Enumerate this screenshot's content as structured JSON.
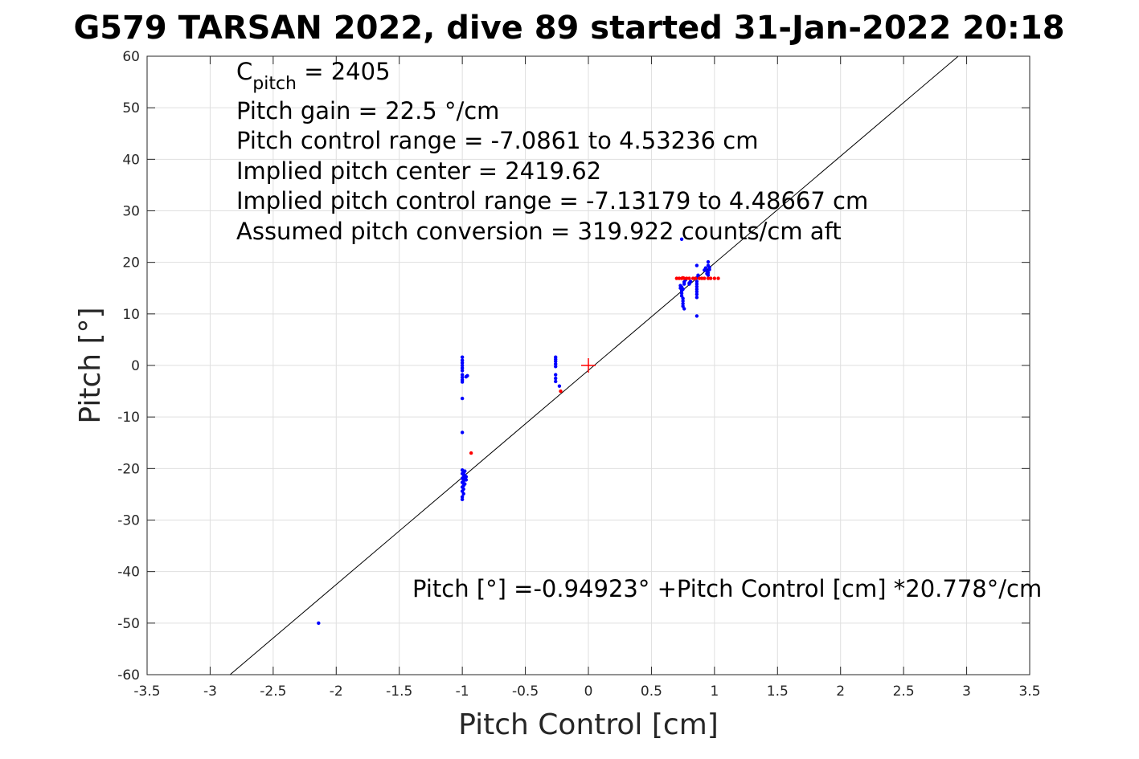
{
  "chart_data": {
    "type": "scatter",
    "title": "G579 TARSAN 2022, dive 89 started 31-Jan-2022 20:18",
    "xlabel": "Pitch Control [cm]",
    "ylabel": "Pitch [°]",
    "xlim": [
      -3.5,
      3.5
    ],
    "ylim": [
      -60,
      60
    ],
    "x_ticks": [
      -3.5,
      -3,
      -2.5,
      -2,
      -1.5,
      -1,
      -0.5,
      0,
      0.5,
      1,
      1.5,
      2,
      2.5,
      3,
      3.5
    ],
    "x_tick_labels": [
      "-3.5",
      "-3",
      "-2.5",
      "-2",
      "-1.5",
      "-1",
      "-0.5",
      "0",
      "0.5",
      "1",
      "1.5",
      "2",
      "2.5",
      "3",
      "3.5"
    ],
    "y_ticks": [
      -60,
      -50,
      -40,
      -30,
      -20,
      -10,
      0,
      10,
      20,
      30,
      40,
      50,
      60
    ],
    "y_tick_labels": [
      "-60",
      "-50",
      "-40",
      "-30",
      "-20",
      "-10",
      "0",
      "10",
      "20",
      "30",
      "40",
      "50",
      "60"
    ],
    "grid": true,
    "annotations": {
      "c_pitch_symbol": "C",
      "c_pitch_sub": "pitch",
      "c_pitch_value": " = 2405",
      "pitch_gain": "Pitch gain = 22.5 °/cm",
      "pitch_control_range": "Pitch control range = -7.0861 to 4.53236 cm",
      "implied_center": "Implied pitch center = 2419.62",
      "implied_range": "Implied pitch control range = -7.13179 to 4.48667 cm",
      "assumed_conversion": "Assumed pitch conversion = 319.922 counts/cm aft",
      "fit_equation": "Pitch [°] =-0.94923° +Pitch Control [cm] *20.778°/cm"
    },
    "fit_line": {
      "intercept": -0.94923,
      "slope": 20.778,
      "color": "#000000"
    },
    "center_marker": {
      "x": 0,
      "y": 0,
      "color": "#ff0000",
      "shape": "plus"
    },
    "series": [
      {
        "color": "#0000ff",
        "points": [
          [
            -2.14,
            -50
          ],
          [
            -1.0,
            1.6
          ],
          [
            -1.0,
            1.0
          ],
          [
            -1.0,
            0.5
          ],
          [
            -1.0,
            0.0
          ],
          [
            -1.0,
            -0.5
          ],
          [
            -1.0,
            -1.0
          ],
          [
            -1.0,
            -1.8
          ],
          [
            -1.0,
            -2.3
          ],
          [
            -1.0,
            -2.8
          ],
          [
            -1.0,
            -3.2
          ],
          [
            -0.97,
            -2.2
          ],
          [
            -0.96,
            -2.0
          ],
          [
            -1.0,
            -6.4
          ],
          [
            -1.0,
            -13.0
          ],
          [
            -1.0,
            -20.3
          ],
          [
            -0.98,
            -20.5
          ],
          [
            -0.99,
            -20.8
          ],
          [
            -1.0,
            -21.0
          ],
          [
            -0.98,
            -21.3
          ],
          [
            -0.99,
            -21.6
          ],
          [
            -1.0,
            -21.9
          ],
          [
            -0.98,
            -22.1
          ],
          [
            -0.99,
            -22.4
          ],
          [
            -1.0,
            -22.7
          ],
          [
            -0.98,
            -23.0
          ],
          [
            -0.99,
            -23.3
          ],
          [
            -1.0,
            -23.6
          ],
          [
            -0.99,
            -24.0
          ],
          [
            -1.0,
            -24.4
          ],
          [
            -0.99,
            -24.9
          ],
          [
            -1.0,
            -25.5
          ],
          [
            -1.0,
            -26.0
          ],
          [
            -0.97,
            -21.6
          ],
          [
            -0.97,
            -22.2
          ],
          [
            -0.26,
            1.6
          ],
          [
            -0.26,
            1.2
          ],
          [
            -0.26,
            0.8
          ],
          [
            -0.26,
            0.3
          ],
          [
            -0.26,
            -0.2
          ],
          [
            -0.26,
            -1.8
          ],
          [
            -0.26,
            -2.5
          ],
          [
            -0.26,
            -3.1
          ],
          [
            -0.23,
            -4.0
          ],
          [
            0.74,
            24.5
          ],
          [
            0.73,
            15.5
          ],
          [
            0.73,
            15.0
          ],
          [
            0.74,
            14.5
          ],
          [
            0.74,
            14.0
          ],
          [
            0.74,
            13.5
          ],
          [
            0.75,
            13.0
          ],
          [
            0.75,
            12.5
          ],
          [
            0.75,
            12.0
          ],
          [
            0.75,
            11.5
          ],
          [
            0.76,
            11.0
          ],
          [
            0.76,
            15.8
          ],
          [
            0.76,
            16.2
          ],
          [
            0.77,
            16.6
          ],
          [
            0.74,
            15.2
          ],
          [
            0.75,
            14.8
          ],
          [
            0.8,
            16.0
          ],
          [
            0.8,
            15.8
          ],
          [
            0.81,
            16.3
          ],
          [
            0.86,
            19.4
          ],
          [
            0.86,
            17.0
          ],
          [
            0.86,
            16.3
          ],
          [
            0.86,
            15.8
          ],
          [
            0.86,
            15.3
          ],
          [
            0.86,
            14.8
          ],
          [
            0.86,
            14.3
          ],
          [
            0.86,
            13.8
          ],
          [
            0.86,
            13.2
          ],
          [
            0.86,
            9.6
          ],
          [
            0.87,
            17.5
          ],
          [
            0.92,
            18.5
          ],
          [
            0.93,
            18.9
          ],
          [
            0.94,
            18.3
          ],
          [
            0.95,
            19.4
          ],
          [
            0.95,
            20.1
          ],
          [
            0.95,
            18.0
          ],
          [
            0.95,
            17.5
          ],
          [
            0.94,
            17.8
          ],
          [
            0.96,
            19.0
          ],
          [
            0.96,
            18.6
          ]
        ]
      },
      {
        "color": "#ff0000",
        "points": [
          [
            -0.93,
            -17.0
          ],
          [
            -0.22,
            -5.0
          ],
          [
            0.7,
            16.9
          ],
          [
            0.72,
            16.9
          ],
          [
            0.74,
            16.9
          ],
          [
            0.75,
            17.0
          ],
          [
            0.76,
            16.9
          ],
          [
            0.78,
            16.9
          ],
          [
            0.8,
            16.9
          ],
          [
            0.83,
            16.9
          ],
          [
            0.85,
            16.9
          ],
          [
            0.88,
            16.9
          ],
          [
            0.9,
            16.9
          ],
          [
            0.92,
            16.9
          ],
          [
            0.95,
            16.9
          ],
          [
            0.97,
            16.9
          ],
          [
            1.0,
            16.9
          ],
          [
            1.03,
            16.9
          ]
        ]
      }
    ]
  }
}
